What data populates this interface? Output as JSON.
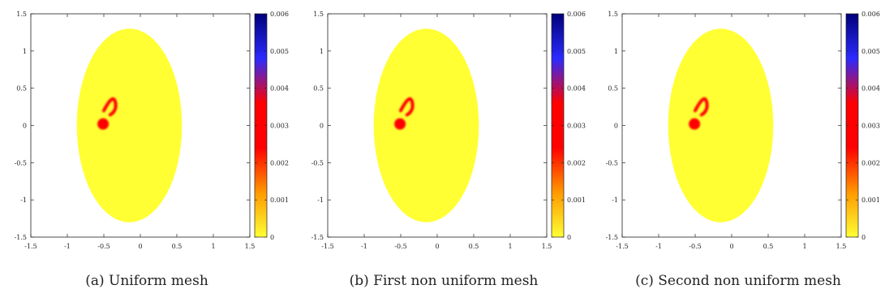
{
  "figure": {
    "panels": [
      {
        "caption": "(a) Uniform mesh"
      },
      {
        "caption": "(b) First non uniform mesh"
      },
      {
        "caption": "(c) Second non uniform mesh"
      }
    ]
  },
  "chart_data": [
    {
      "type": "heatmap",
      "title": "",
      "xlabel": "",
      "ylabel": "",
      "xlim": [
        -1.5,
        1.5
      ],
      "ylim": [
        -1.5,
        1.5
      ],
      "x_ticks": [
        "-1.5",
        "-1",
        "-0.5",
        "0",
        "0.5",
        "1",
        "1.5"
      ],
      "y_ticks": [
        "-1.5",
        "-1",
        "-0.5",
        "0",
        "0.5",
        "1",
        "1.5"
      ],
      "colorbar": {
        "range": [
          0,
          0.006
        ],
        "ticks": [
          "0",
          "0.001",
          "0.002",
          "0.003",
          "0.004",
          "0.005",
          "0.006"
        ],
        "colors": [
          "#ffff33",
          "#ff9900",
          "#ff0000",
          "#ff0000",
          "#2b2bff",
          "#00007a"
        ]
      },
      "grid": false,
      "domain": {
        "shape": "ellipse",
        "center": [
          -0.15,
          0.0
        ],
        "semi_axes": [
          0.72,
          1.3
        ],
        "value": 0.0
      },
      "features": [
        {
          "shape": "blob",
          "center": [
            -0.51,
            0.02
          ],
          "value": 0.003
        },
        {
          "shape": "arc",
          "points": [
            [
              -0.5,
              0.2
            ],
            [
              -0.43,
              0.33
            ],
            [
              -0.36,
              0.42
            ],
            [
              -0.34,
              0.3
            ],
            [
              -0.42,
              0.14
            ]
          ],
          "value": 0.003
        }
      ]
    },
    {
      "type": "heatmap",
      "title": "",
      "xlabel": "",
      "ylabel": "",
      "xlim": [
        -1.5,
        1.5
      ],
      "ylim": [
        -1.5,
        1.5
      ],
      "x_ticks": [
        "-1.5",
        "-1",
        "-0.5",
        "0",
        "0.5",
        "1",
        "1.5"
      ],
      "y_ticks": [
        "-1.5",
        "-1",
        "-0.5",
        "0",
        "0.5",
        "1",
        "1.5"
      ],
      "colorbar": {
        "range": [
          0,
          0.006
        ],
        "ticks": [
          "0",
          "0.001",
          "0.002",
          "0.003",
          "0.004",
          "0.005",
          "0.006"
        ],
        "colors": [
          "#ffff33",
          "#ff9900",
          "#ff0000",
          "#ff0000",
          "#2b2bff",
          "#00007a"
        ]
      },
      "grid": false,
      "domain": {
        "shape": "ellipse",
        "center": [
          -0.15,
          0.0
        ],
        "semi_axes": [
          0.72,
          1.3
        ],
        "value": 0.0
      },
      "features": [
        {
          "shape": "blob",
          "center": [
            -0.51,
            0.02
          ],
          "value": 0.003
        },
        {
          "shape": "arc",
          "points": [
            [
              -0.5,
              0.2
            ],
            [
              -0.43,
              0.33
            ],
            [
              -0.36,
              0.42
            ],
            [
              -0.34,
              0.3
            ],
            [
              -0.42,
              0.14
            ]
          ],
          "value": 0.003
        }
      ]
    },
    {
      "type": "heatmap",
      "title": "",
      "xlabel": "",
      "ylabel": "",
      "xlim": [
        -1.5,
        1.5
      ],
      "ylim": [
        -1.5,
        1.5
      ],
      "x_ticks": [
        "-1.5",
        "-1",
        "-0.5",
        "0",
        "0.5",
        "1",
        "1.5"
      ],
      "y_ticks": [
        "-1.5",
        "-1",
        "-0.5",
        "0",
        "0.5",
        "1",
        "1.5"
      ],
      "colorbar": {
        "range": [
          0,
          0.006
        ],
        "ticks": [
          "0",
          "0.001",
          "0.002",
          "0.003",
          "0.004",
          "0.005",
          "0.006"
        ],
        "colors": [
          "#ffff33",
          "#ff9900",
          "#ff0000",
          "#ff0000",
          "#2b2bff",
          "#00007a"
        ]
      },
      "grid": false,
      "domain": {
        "shape": "ellipse",
        "center": [
          -0.15,
          0.0
        ],
        "semi_axes": [
          0.72,
          1.3
        ],
        "value": 0.0
      },
      "features": [
        {
          "shape": "blob",
          "center": [
            -0.51,
            0.02
          ],
          "value": 0.003
        },
        {
          "shape": "arc",
          "points": [
            [
              -0.5,
              0.2
            ],
            [
              -0.43,
              0.33
            ],
            [
              -0.36,
              0.42
            ],
            [
              -0.34,
              0.3
            ],
            [
              -0.42,
              0.14
            ]
          ],
          "value": 0.003
        }
      ]
    }
  ]
}
